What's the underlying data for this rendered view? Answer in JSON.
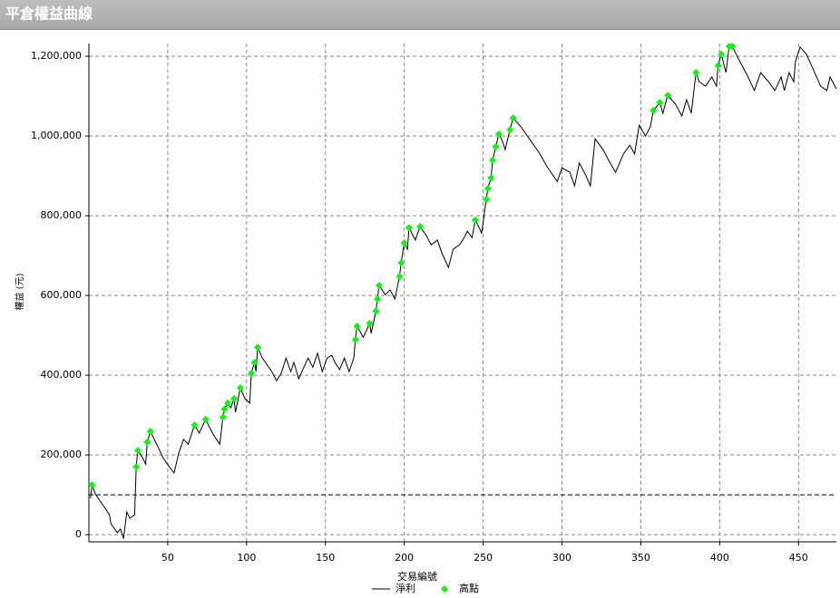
{
  "header": {
    "title": "平倉權益曲線"
  },
  "chart_data": {
    "type": "line",
    "xlabel": "交易編號",
    "ylabel": "權益 (元)",
    "xlim": [
      0,
      474
    ],
    "ylim": [
      -18000,
      1232000
    ],
    "xticks": [
      50,
      100,
      150,
      200,
      250,
      300,
      350,
      400,
      450
    ],
    "yticks": [
      0,
      {
        "value": 200000,
        "label": "200,000"
      },
      {
        "value": 400000,
        "label": "400,000"
      },
      {
        "value": 600000,
        "label": "600,000"
      },
      {
        "value": 800000,
        "label": "800,000"
      },
      {
        "value": 1000000,
        "label": "1,000,000"
      },
      {
        "value": 1200000,
        "label": "1,200,000"
      }
    ],
    "grid": true,
    "hlines": [
      100000
    ],
    "series": [
      {
        "name": "淨利",
        "color": "#000000",
        "type": "line",
        "x": [
          1,
          2,
          4,
          10,
          13,
          14,
          17,
          18,
          20,
          22,
          24,
          26,
          29,
          30,
          31,
          34,
          36,
          37,
          39,
          43,
          47,
          51,
          54,
          57,
          60,
          63,
          67,
          70,
          74,
          79,
          83,
          85,
          86,
          88,
          90,
          92,
          93,
          96,
          99,
          102,
          103,
          105,
          106,
          107,
          110,
          116,
          119,
          122,
          125,
          128,
          130,
          133,
          139,
          142,
          145,
          148,
          151,
          154,
          156,
          159,
          162,
          165,
          168,
          169,
          170,
          174,
          178,
          179,
          182,
          183,
          184,
          188,
          191,
          194,
          197,
          198,
          200,
          202,
          203,
          207,
          210,
          214,
          217,
          221,
          224,
          228,
          231,
          235,
          238,
          240,
          243,
          245,
          248,
          249,
          252,
          253,
          255,
          256,
          258,
          260,
          262,
          264,
          267,
          269,
          274,
          280,
          286,
          291,
          297,
          300,
          305,
          308,
          311,
          315,
          318,
          321,
          326,
          330,
          334,
          339,
          343,
          346,
          349,
          353,
          356,
          358,
          362,
          364,
          367,
          372,
          376,
          379,
          382,
          385,
          387,
          391,
          395,
          398,
          399,
          401,
          404,
          406,
          408,
          412,
          418,
          422,
          426,
          431,
          435,
          439,
          441,
          444,
          447,
          448,
          451,
          455,
          459,
          464,
          468,
          470,
          474
        ],
        "values": [
          91000,
          125000,
          102000,
          68000,
          50000,
          27000,
          11000,
          5000,
          14000,
          -10000,
          57000,
          41000,
          50000,
          170000,
          211000,
          193000,
          177000,
          232000,
          259000,
          227000,
          193000,
          170000,
          155000,
          205000,
          239000,
          227000,
          275000,
          255000,
          289000,
          250000,
          227000,
          295000,
          315000,
          330000,
          318000,
          341000,
          307000,
          368000,
          341000,
          330000,
          405000,
          432000,
          409000,
          470000,
          443000,
          409000,
          386000,
          405000,
          443000,
          409000,
          432000,
          391000,
          443000,
          420000,
          455000,
          409000,
          443000,
          450000,
          432000,
          414000,
          443000,
          409000,
          443000,
          489000,
          523000,
          495000,
          530000,
          505000,
          561000,
          591000,
          625000,
          602000,
          614000,
          591000,
          648000,
          682000,
          732000,
          716000,
          770000,
          739000,
          773000,
          750000,
          727000,
          739000,
          705000,
          670000,
          716000,
          727000,
          745000,
          761000,
          745000,
          789000,
          766000,
          755000,
          841000,
          868000,
          895000,
          939000,
          973000,
          1005000,
          989000,
          966000,
          1016000,
          1045000,
          1023000,
          989000,
          955000,
          920000,
          886000,
          920000,
          909000,
          875000,
          932000,
          902000,
          875000,
          993000,
          966000,
          936000,
          909000,
          955000,
          977000,
          955000,
          1027000,
          1000000,
          1023000,
          1064000,
          1084000,
          1057000,
          1102000,
          1080000,
          1050000,
          1091000,
          1057000,
          1159000,
          1136000,
          1125000,
          1148000,
          1125000,
          1177000,
          1205000,
          1159000,
          1225000,
          1225000,
          1193000,
          1148000,
          1114000,
          1159000,
          1136000,
          1114000,
          1148000,
          1114000,
          1159000,
          1136000,
          1186000,
          1223000,
          1205000,
          1170000,
          1125000,
          1114000,
          1148000,
          1118000
        ]
      },
      {
        "name": "高點",
        "color": "#00ff00",
        "type": "scatter",
        "x": [
          2,
          30,
          31,
          37,
          39,
          67,
          74,
          85,
          86,
          88,
          92,
          96,
          103,
          105,
          107,
          169,
          170,
          178,
          182,
          183,
          184,
          197,
          198,
          200,
          203,
          210,
          245,
          252,
          253,
          255,
          256,
          258,
          260,
          267,
          269,
          358,
          362,
          367,
          385,
          399,
          401,
          406,
          408
        ],
        "values": [
          125000,
          170000,
          211000,
          232000,
          259000,
          275000,
          289000,
          295000,
          315000,
          330000,
          341000,
          368000,
          405000,
          432000,
          470000,
          489000,
          523000,
          530000,
          561000,
          591000,
          625000,
          648000,
          682000,
          732000,
          770000,
          773000,
          789000,
          841000,
          868000,
          895000,
          939000,
          973000,
          1005000,
          1016000,
          1045000,
          1064000,
          1084000,
          1102000,
          1159000,
          1177000,
          1205000,
          1225000,
          1225000
        ]
      }
    ]
  }
}
